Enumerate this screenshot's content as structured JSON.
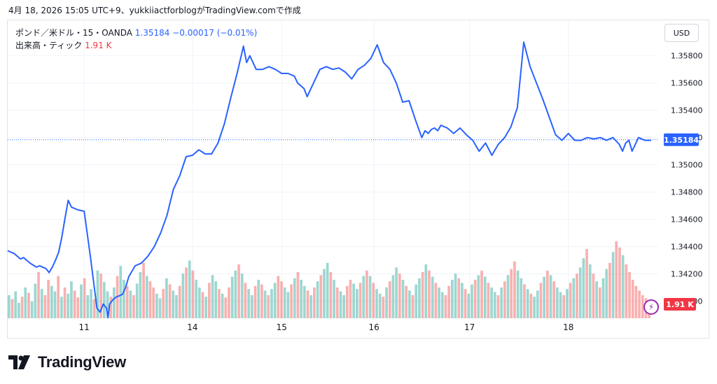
{
  "caption": "4月 18, 2026 15:05 UTC+9、yukkiiactforblogがTradingView.comで作成",
  "legend": {
    "symbol": "ポンド／米ドル・15・OANDA",
    "price": "1.35184",
    "change": "−0.00017 (−0.01%)",
    "volume_label": "出来高・ティック",
    "volume_value": "1.91 K"
  },
  "currency_button": "USD",
  "brand": "TradingView",
  "colors": {
    "line": "#2962ff",
    "vol_up": "#26a69a",
    "vol_down": "#ef5350",
    "last_price_bg": "#2962ff",
    "volume_badge_bg": "#f23645"
  },
  "chart_data": {
    "type": "line",
    "series": [
      {
        "name": "ポンド／米ドル・15・OANDA",
        "x": [
          0,
          2,
          4,
          5,
          7,
          9,
          10,
          12,
          13,
          14,
          15,
          16,
          17,
          18,
          19,
          20,
          22,
          24,
          26,
          28,
          29,
          30,
          31,
          31.5,
          32,
          33,
          34,
          35,
          36,
          37,
          38,
          40,
          42,
          44,
          46,
          48,
          50,
          52,
          54,
          56,
          58,
          60,
          62,
          64,
          66,
          68,
          70,
          72,
          74,
          75,
          76,
          78,
          80,
          82,
          84,
          86,
          88,
          90,
          91,
          92,
          93,
          94,
          95,
          96,
          98,
          100,
          102,
          104,
          106,
          108,
          110,
          112,
          114,
          116,
          118,
          120,
          122,
          124,
          126,
          128,
          130,
          131,
          132,
          133,
          134,
          135,
          136,
          138,
          140,
          142,
          144,
          146,
          148,
          150,
          152,
          154,
          156,
          158,
          160,
          162,
          164,
          166,
          168,
          170,
          172,
          174,
          176,
          178,
          180,
          182,
          184,
          186,
          188,
          190,
          192,
          193,
          194,
          195,
          196,
          197,
          198,
          199,
          200,
          201,
          202
        ],
        "values": [
          1.3437,
          1.3435,
          1.3431,
          1.3432,
          1.3428,
          1.3425,
          1.3426,
          1.3424,
          1.3421,
          1.3425,
          1.343,
          1.3436,
          1.3447,
          1.3461,
          1.3474,
          1.3469,
          1.3467,
          1.3466,
          1.3432,
          1.3395,
          1.3392,
          1.3398,
          1.3395,
          1.3388,
          1.3398,
          1.3401,
          1.3403,
          1.3404,
          1.3405,
          1.341,
          1.3418,
          1.3426,
          1.3428,
          1.3433,
          1.344,
          1.345,
          1.3463,
          1.3482,
          1.3492,
          1.3506,
          1.3507,
          1.3511,
          1.3508,
          1.3508,
          1.3516,
          1.353,
          1.3549,
          1.3567,
          1.3587,
          1.3575,
          1.358,
          1.357,
          1.357,
          1.3572,
          1.357,
          1.3567,
          1.3567,
          1.3565,
          1.356,
          1.3558,
          1.3556,
          1.355,
          1.3555,
          1.356,
          1.357,
          1.3572,
          1.357,
          1.3571,
          1.3568,
          1.3563,
          1.357,
          1.3573,
          1.3578,
          1.3588,
          1.3575,
          1.357,
          1.356,
          1.3546,
          1.3547,
          1.3533,
          1.352,
          1.3525,
          1.3523,
          1.3526,
          1.3527,
          1.3525,
          1.3529,
          1.3527,
          1.3523,
          1.3527,
          1.3522,
          1.3518,
          1.351,
          1.3516,
          1.3507,
          1.3515,
          1.352,
          1.3528,
          1.3542,
          1.359,
          1.3572,
          1.356,
          1.3548,
          1.3535,
          1.3522,
          1.3518,
          1.3523,
          1.3518,
          1.3518,
          1.352,
          1.3519,
          1.352,
          1.3518,
          1.352,
          1.3515,
          1.351,
          1.3516,
          1.3518,
          1.351,
          1.3515,
          1.352,
          1.3519,
          1.3518,
          1.3518,
          1.3518
        ]
      }
    ],
    "x_tick_labels": [
      "11",
      "14",
      "15",
      "16",
      "17",
      "18"
    ],
    "y_tick_labels": [
      "1.34000",
      "1.34200",
      "1.34400",
      "1.34600",
      "1.34800",
      "1.35000",
      "1.35200",
      "1.35400",
      "1.35600",
      "1.35800"
    ],
    "ylim": [
      1.3387,
      1.3606
    ],
    "last_price_label": "1.35184",
    "volume_badge_label": "1.91 K",
    "volume": {
      "values": [
        0.3,
        0.25,
        0.35,
        0.2,
        0.28,
        0.4,
        0.33,
        0.22,
        0.45,
        0.6,
        0.38,
        0.3,
        0.5,
        0.42,
        0.35,
        0.55,
        0.28,
        0.4,
        0.32,
        0.48,
        0.36,
        0.27,
        0.44,
        0.52,
        0.3,
        0.38,
        0.25,
        0.62,
        0.58,
        0.47,
        0.35,
        0.28,
        0.4,
        0.55,
        0.68,
        0.5,
        0.42,
        0.36,
        0.3,
        0.45,
        0.6,
        0.72,
        0.55,
        0.48,
        0.4,
        0.32,
        0.26,
        0.38,
        0.52,
        0.44,
        0.36,
        0.3,
        0.42,
        0.58,
        0.66,
        0.75,
        0.62,
        0.5,
        0.4,
        0.34,
        0.28,
        0.46,
        0.56,
        0.48,
        0.38,
        0.32,
        0.27,
        0.4,
        0.54,
        0.62,
        0.7,
        0.58,
        0.46,
        0.38,
        0.3,
        0.42,
        0.5,
        0.44,
        0.36,
        0.3,
        0.38,
        0.46,
        0.55,
        0.48,
        0.4,
        0.34,
        0.44,
        0.52,
        0.6,
        0.5,
        0.42,
        0.36,
        0.3,
        0.4,
        0.48,
        0.56,
        0.64,
        0.72,
        0.6,
        0.5,
        0.4,
        0.35,
        0.3,
        0.42,
        0.5,
        0.45,
        0.38,
        0.46,
        0.55,
        0.62,
        0.55,
        0.46,
        0.38,
        0.32,
        0.28,
        0.4,
        0.48,
        0.56,
        0.66,
        0.58,
        0.5,
        0.42,
        0.36,
        0.3,
        0.44,
        0.52,
        0.6,
        0.7,
        0.62,
        0.54,
        0.46,
        0.4,
        0.34,
        0.3,
        0.42,
        0.5,
        0.58,
        0.52,
        0.46,
        0.38,
        0.32,
        0.44,
        0.5,
        0.56,
        0.62,
        0.54,
        0.46,
        0.4,
        0.34,
        0.3,
        0.4,
        0.48,
        0.56,
        0.64,
        0.74,
        0.62,
        0.52,
        0.44,
        0.38,
        0.32,
        0.28,
        0.36,
        0.46,
        0.54,
        0.62,
        0.56,
        0.48,
        0.4,
        0.34,
        0.3,
        0.38,
        0.46,
        0.52,
        0.58,
        0.66,
        0.78,
        0.9,
        0.7,
        0.58,
        0.48,
        0.4,
        0.52,
        0.64,
        0.72,
        0.86,
        1.0,
        0.92,
        0.82,
        0.7,
        0.6,
        0.5,
        0.42,
        0.36,
        0.3,
        0.26,
        0.22
      ],
      "up": [
        1,
        0,
        1,
        1,
        0,
        1,
        0,
        1,
        1,
        0,
        1,
        0,
        0,
        1,
        1,
        0,
        1,
        0,
        1,
        1,
        0,
        0,
        1,
        0,
        1,
        1,
        0,
        1,
        0,
        1,
        1,
        0,
        1,
        0,
        1,
        1,
        0,
        1,
        0,
        1,
        1,
        0,
        1,
        0,
        0,
        1,
        1,
        0,
        1,
        0,
        1,
        1,
        0,
        1,
        0,
        1,
        0,
        1,
        1,
        0,
        1,
        0,
        1,
        1,
        0,
        1,
        0,
        0,
        1,
        1,
        0,
        1,
        0,
        1,
        1,
        0,
        1,
        0,
        1,
        0,
        1,
        1,
        0,
        0,
        1,
        1,
        0,
        1,
        0,
        1,
        1,
        0,
        1,
        0,
        1,
        0,
        1,
        1,
        0,
        1,
        0,
        1,
        1,
        0,
        0,
        1,
        1,
        0,
        1,
        0,
        1,
        0,
        1,
        1,
        0,
        1,
        0,
        1,
        1,
        0,
        1,
        0,
        1,
        0,
        1,
        1,
        0,
        1,
        0,
        1,
        0,
        1,
        1,
        0,
        0,
        1,
        1,
        0,
        1,
        0,
        1,
        1,
        0,
        1,
        0,
        1,
        0,
        1,
        1,
        0,
        1,
        0,
        1,
        0,
        0,
        1,
        1,
        0,
        1,
        0,
        1,
        1,
        0,
        1,
        0,
        1,
        0,
        1,
        1,
        0,
        1,
        0,
        1,
        0,
        1,
        1,
        0,
        1,
        0,
        1,
        0,
        1,
        1,
        0,
        1,
        0,
        0,
        1
      ]
    }
  }
}
